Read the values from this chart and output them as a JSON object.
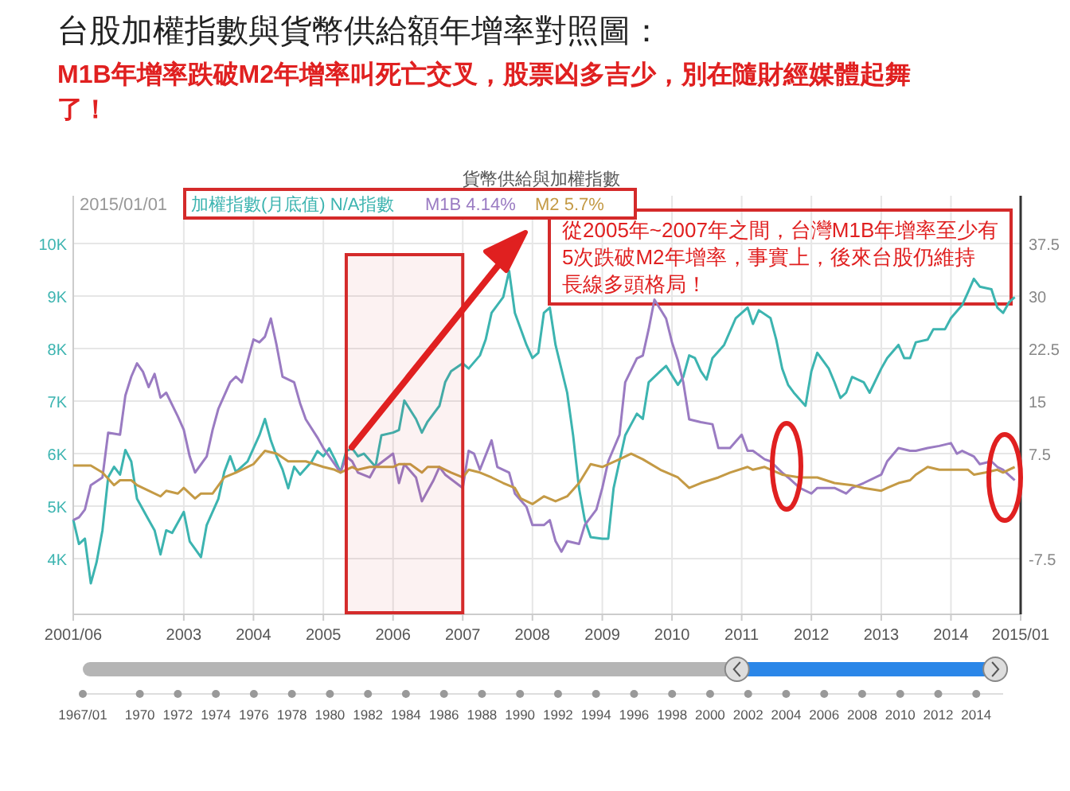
{
  "chart_data": {
    "type": "line",
    "title": "台股加權指數與貨幣供給額年增率對照圖：",
    "subtitle": "M1B年增率跌破M2年增率叫死亡交叉，股票凶多吉少，別在隨財經媒體起舞了！",
    "annotations": [
      "貨幣供給與加權指數",
      "從2005年~2007年之間，台灣M1B年增率至少有5次跌破M2年增率，事實上，後來台股仍維持長線多頭格局！"
    ],
    "legend_title": "2015/01/01",
    "legend": "top left",
    "grid": true,
    "bands": [
      {
        "axis": "x",
        "from": "2005-05",
        "to": "2007-01",
        "color": "#d42a2a"
      }
    ],
    "xlim": [
      "2001-06",
      "2015-01"
    ],
    "xticks": [
      {
        "value": "2001-06",
        "label": "2001/06"
      },
      {
        "value": "2003",
        "label": "2003"
      },
      {
        "value": "2004",
        "label": "2004"
      },
      {
        "value": "2005",
        "label": "2005"
      },
      {
        "value": "2006",
        "label": "2006"
      },
      {
        "value": "2007",
        "label": "2007"
      },
      {
        "value": "2008",
        "label": "2008"
      },
      {
        "value": "2009",
        "label": "2009"
      },
      {
        "value": "2010",
        "label": "2010"
      },
      {
        "value": "2011",
        "label": "2011"
      },
      {
        "value": "2012",
        "label": "2012"
      },
      {
        "value": "2013",
        "label": "2013"
      },
      {
        "value": "2014",
        "label": "2014"
      },
      {
        "value": "2015-01",
        "label": "2015/01"
      }
    ],
    "x2lim": [
      "1967-01",
      "2015-06"
    ],
    "x2ticks": [
      {
        "value": "1967-01",
        "label": "1967/01"
      },
      {
        "value": "1970",
        "label": "1970"
      },
      {
        "value": "1972",
        "label": "1972"
      },
      {
        "value": "1974",
        "label": "1974"
      },
      {
        "value": "1976",
        "label": "1976"
      },
      {
        "value": "1978",
        "label": "1978"
      },
      {
        "value": "1980",
        "label": "1980"
      },
      {
        "value": "1982",
        "label": "1982"
      },
      {
        "value": "1984",
        "label": "1984"
      },
      {
        "value": "1986",
        "label": "1986"
      },
      {
        "value": "1988",
        "label": "1988"
      },
      {
        "value": "1990",
        "label": "1990"
      },
      {
        "value": "1992",
        "label": "1992"
      },
      {
        "value": "1994",
        "label": "1994"
      },
      {
        "value": "1996",
        "label": "1996"
      },
      {
        "value": "1998",
        "label": "1998"
      },
      {
        "value": "2000",
        "label": "2000"
      },
      {
        "value": "2002",
        "label": "2002"
      },
      {
        "value": "2004",
        "label": "2004"
      },
      {
        "value": "2006",
        "label": "2006"
      },
      {
        "value": "2008",
        "label": "2008"
      },
      {
        "value": "2010",
        "label": "2010"
      },
      {
        "value": "2012",
        "label": "2012"
      },
      {
        "value": "2014",
        "label": "2014"
      }
    ],
    "ylim": [
      2940,
      10910
    ],
    "yticks": [
      {
        "value": 4000,
        "label": "4K"
      },
      {
        "value": 5000,
        "label": "5K"
      },
      {
        "value": 6000,
        "label": "6K"
      },
      {
        "value": 7000,
        "label": "7K"
      },
      {
        "value": 8000,
        "label": "8K"
      },
      {
        "value": 9000,
        "label": "9K"
      },
      {
        "value": 10000,
        "label": "10K"
      }
    ],
    "y2lim": [
      -15.45,
      44.33
    ],
    "y2ticks": [
      -7.5,
      7.5,
      15,
      22.5,
      30,
      37.5
    ],
    "series": [
      {
        "name": "加權指數(月底值) N/A指數",
        "color": "#3cb4b0",
        "x": [
          "2001-06",
          "2001-07",
          "2001-08",
          "2001-09",
          "2001-10",
          "2001-11",
          "2001-12",
          "2002-01",
          "2002-02",
          "2002-03",
          "2002-04",
          "2002-05",
          "2002-07",
          "2002-08",
          "2002-09",
          "2002-10",
          "2002-11",
          "2003-01",
          "2003-02",
          "2003-04",
          "2003-05",
          "2003-07",
          "2003-08",
          "2003-09",
          "2003-10",
          "2003-12",
          "2004-02",
          "2004-03",
          "2004-04",
          "2004-05",
          "2004-06",
          "2004-07",
          "2004-08",
          "2004-09",
          "2004-11",
          "2004-12",
          "2005-01",
          "2005-02",
          "2005-03",
          "2005-04",
          "2005-05",
          "2005-06",
          "2005-07",
          "2005-08",
          "2005-10",
          "2005-11",
          "2006-01",
          "2006-02",
          "2006-03",
          "2006-05",
          "2006-06",
          "2006-07",
          "2006-09",
          "2006-10",
          "2006-11",
          "2007-01",
          "2007-02",
          "2007-04",
          "2007-05",
          "2007-06",
          "2007-08",
          "2007-09",
          "2007-10",
          "2007-12",
          "2008-01",
          "2008-02",
          "2008-03",
          "2008-04",
          "2008-05",
          "2008-07",
          "2008-08",
          "2008-09",
          "2008-10",
          "2008-11",
          "2009-01",
          "2009-02",
          "2009-03",
          "2009-05",
          "2009-06",
          "2009-07",
          "2009-08",
          "2009-09",
          "2009-11",
          "2009-12",
          "2010-02",
          "2010-03",
          "2010-04",
          "2010-05",
          "2010-06",
          "2010-07",
          "2010-08",
          "2010-10",
          "2010-12",
          "2011-02",
          "2011-03",
          "2011-04",
          "2011-06",
          "2011-07",
          "2011-08",
          "2011-09",
          "2011-10",
          "2011-12",
          "2012-01",
          "2012-02",
          "2012-04",
          "2012-05",
          "2012-06",
          "2012-07",
          "2012-08",
          "2012-10",
          "2012-11",
          "2013-01",
          "2013-02",
          "2013-04",
          "2013-05",
          "2013-06",
          "2013-07",
          "2013-09",
          "2013-10",
          "2013-12",
          "2014-01",
          "2014-03",
          "2014-04",
          "2014-05",
          "2014-06",
          "2014-08",
          "2014-09",
          "2014-10",
          "2014-11",
          "2014-12"
        ],
        "values": [
          4740,
          4280,
          4380,
          3530,
          3930,
          4540,
          5550,
          5750,
          5600,
          6070,
          5850,
          5140,
          4740,
          4540,
          4080,
          4540,
          4490,
          4890,
          4330,
          4030,
          4640,
          5140,
          5650,
          5950,
          5650,
          5850,
          6350,
          6660,
          6250,
          5950,
          5700,
          5340,
          5750,
          5600,
          5850,
          6050,
          5950,
          6100,
          5900,
          5650,
          6050,
          6100,
          5950,
          6000,
          5750,
          6350,
          6400,
          6450,
          7010,
          6660,
          6400,
          6610,
          6910,
          7360,
          7570,
          7720,
          7620,
          7870,
          8170,
          8680,
          8980,
          9480,
          8680,
          8070,
          7820,
          7920,
          8680,
          8780,
          8070,
          7160,
          6350,
          5340,
          4740,
          4410,
          4380,
          4380,
          5340,
          6350,
          6560,
          6760,
          6660,
          7360,
          7570,
          7670,
          7310,
          7460,
          7870,
          7820,
          7570,
          7410,
          7820,
          8070,
          8580,
          8780,
          8470,
          8730,
          8580,
          8170,
          7620,
          7310,
          7160,
          6910,
          7570,
          7920,
          7620,
          7360,
          7060,
          7160,
          7460,
          7360,
          7160,
          7620,
          7820,
          8070,
          7820,
          7820,
          8120,
          8170,
          8370,
          8370,
          8580,
          8830,
          9080,
          9330,
          9180,
          9130,
          8780,
          8680,
          8880,
          8980
        ]
      },
      {
        "name": "M1B 4.14%",
        "color": "#9a7bc2",
        "axis": "y2",
        "x": [
          "2001-06",
          "2001-07",
          "2001-08",
          "2001-09",
          "2001-11",
          "2001-12",
          "2002-02",
          "2002-03",
          "2002-04",
          "2002-05",
          "2002-06",
          "2002-07",
          "2002-08",
          "2002-09",
          "2002-10",
          "2002-12",
          "2003-01",
          "2003-02",
          "2003-03",
          "2003-05",
          "2003-06",
          "2003-07",
          "2003-09",
          "2003-10",
          "2003-11",
          "2004-01",
          "2004-02",
          "2004-03",
          "2004-04",
          "2004-05",
          "2004-06",
          "2004-08",
          "2004-09",
          "2004-10",
          "2004-12",
          "2005-01",
          "2005-02",
          "2005-04",
          "2005-05",
          "2005-06",
          "2005-07",
          "2005-09",
          "2005-10",
          "2006-01",
          "2006-02",
          "2006-03",
          "2006-05",
          "2006-06",
          "2006-08",
          "2006-09",
          "2006-10",
          "2007-01",
          "2007-02",
          "2007-03",
          "2007-04",
          "2007-06",
          "2007-07",
          "2007-09",
          "2007-10",
          "2007-12",
          "2008-01",
          "2008-03",
          "2008-04",
          "2008-05",
          "2008-06",
          "2008-07",
          "2008-09",
          "2008-10",
          "2008-12",
          "2009-01",
          "2009-02",
          "2009-04",
          "2009-05",
          "2009-07",
          "2009-08",
          "2009-09",
          "2009-10",
          "2009-12",
          "2010-01",
          "2010-02",
          "2010-03",
          "2010-04",
          "2010-06",
          "2010-08",
          "2010-09",
          "2010-11",
          "2011-01",
          "2011-02",
          "2011-03",
          "2011-05",
          "2011-06",
          "2011-08",
          "2011-09",
          "2011-11",
          "2012-01",
          "2012-02",
          "2012-04",
          "2012-05",
          "2012-07",
          "2012-08",
          "2012-10",
          "2013-01",
          "2013-02",
          "2013-04",
          "2013-06",
          "2013-07",
          "2013-09",
          "2013-11",
          "2014-01",
          "2014-02",
          "2014-03",
          "2014-05",
          "2014-06",
          "2014-08",
          "2014-09",
          "2014-10",
          "2014-12"
        ],
        "values": [
          -2.0,
          -1.6,
          -0.5,
          3.0,
          4.1,
          10.5,
          10.2,
          15.8,
          18.5,
          20.4,
          19.2,
          17.0,
          18.9,
          15.5,
          16.2,
          12.8,
          10.9,
          7.1,
          4.8,
          7.1,
          10.9,
          13.9,
          17.7,
          18.5,
          17.7,
          23.8,
          23.4,
          24.2,
          26.8,
          23.0,
          18.5,
          17.7,
          14.7,
          12.4,
          9.8,
          8.3,
          7.1,
          4.8,
          7.1,
          6.4,
          4.8,
          4.1,
          5.6,
          7.5,
          3.3,
          6.0,
          4.1,
          0.7,
          3.7,
          5.6,
          4.5,
          2.6,
          7.9,
          7.5,
          5.2,
          9.4,
          5.6,
          4.8,
          1.8,
          -0.1,
          -2.7,
          -2.7,
          -2.0,
          -5.0,
          -6.5,
          -5.0,
          -5.4,
          -2.7,
          -0.5,
          2.6,
          6.4,
          10.2,
          17.7,
          21.1,
          21.5,
          25.3,
          29.5,
          26.8,
          23.4,
          20.8,
          17.7,
          12.4,
          12.0,
          11.7,
          8.3,
          8.3,
          10.2,
          7.9,
          7.9,
          6.7,
          6.4,
          4.8,
          4.1,
          2.6,
          1.8,
          2.6,
          2.6,
          2.6,
          1.8,
          2.6,
          3.3,
          4.5,
          6.4,
          8.3,
          7.9,
          7.9,
          8.3,
          8.6,
          9.0,
          7.5,
          7.9,
          7.1,
          6.0,
          6.4,
          5.6,
          5.2,
          3.7
        ]
      },
      {
        "name": "M2 5.7%",
        "color": "#c49a45",
        "axis": "y2",
        "x": [
          "2001-06",
          "2001-09",
          "2001-11",
          "2002-01",
          "2002-02",
          "2002-04",
          "2002-05",
          "2002-07",
          "2002-09",
          "2002-10",
          "2002-12",
          "2003-01",
          "2003-03",
          "2003-04",
          "2003-06",
          "2003-08",
          "2003-10",
          "2004-01",
          "2004-03",
          "2004-05",
          "2004-07",
          "2004-09",
          "2004-10",
          "2005-01",
          "2005-03",
          "2005-04",
          "2005-06",
          "2005-07",
          "2005-09",
          "2006-01",
          "2006-02",
          "2006-04",
          "2006-06",
          "2006-07",
          "2006-09",
          "2006-11",
          "2007-01",
          "2007-02",
          "2007-04",
          "2007-06",
          "2007-08",
          "2007-10",
          "2007-11",
          "2008-01",
          "2008-03",
          "2008-05",
          "2008-07",
          "2008-09",
          "2008-11",
          "2009-01",
          "2009-04",
          "2009-06",
          "2009-08",
          "2009-11",
          "2010-02",
          "2010-04",
          "2010-06",
          "2010-09",
          "2010-11",
          "2011-02",
          "2011-03",
          "2011-05",
          "2011-08",
          "2011-11",
          "2012-02",
          "2012-05",
          "2012-08",
          "2012-10",
          "2013-01",
          "2013-02",
          "2013-04",
          "2013-06",
          "2013-07",
          "2013-09",
          "2013-11",
          "2014-01",
          "2014-04",
          "2014-05",
          "2014-07",
          "2014-09",
          "2014-10",
          "2014-12"
        ],
        "values": [
          5.8,
          5.8,
          4.8,
          3.0,
          3.7,
          3.7,
          3.0,
          2.2,
          1.4,
          2.2,
          1.8,
          2.6,
          1.1,
          1.8,
          1.8,
          4.1,
          4.8,
          6.0,
          7.9,
          7.5,
          6.4,
          6.4,
          6.4,
          5.6,
          5.2,
          4.8,
          5.6,
          5.2,
          5.6,
          5.6,
          6.0,
          6.0,
          4.8,
          5.6,
          5.6,
          4.8,
          4.1,
          5.2,
          4.8,
          4.1,
          3.3,
          2.6,
          1.1,
          0.3,
          1.4,
          0.7,
          1.4,
          3.3,
          6.0,
          5.6,
          6.7,
          7.5,
          6.7,
          5.2,
          4.1,
          2.6,
          3.3,
          4.1,
          4.8,
          5.6,
          5.2,
          5.6,
          4.5,
          4.1,
          4.1,
          3.3,
          3.0,
          2.6,
          2.2,
          2.6,
          3.3,
          3.7,
          4.5,
          5.6,
          5.2,
          5.2,
          5.2,
          4.5,
          4.8,
          5.2,
          4.8,
          5.6
        ]
      }
    ]
  }
}
